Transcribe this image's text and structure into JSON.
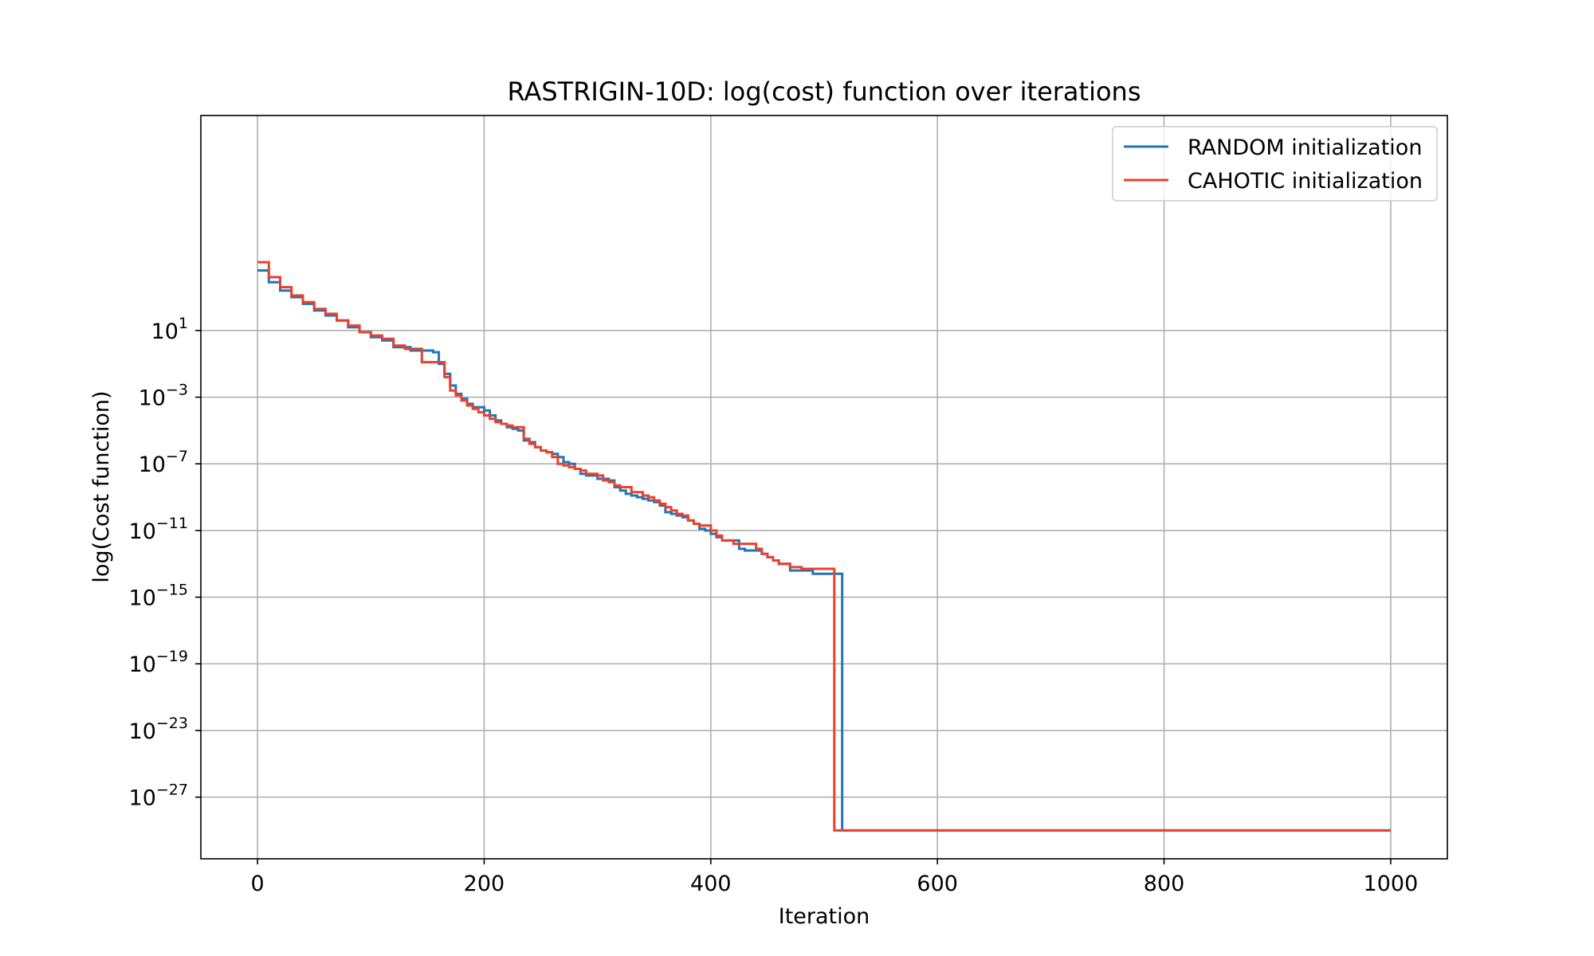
{
  "chart_data": {
    "type": "line",
    "title": "RASTRIGIN-10D: log(cost) function over iterations",
    "xlabel": "Iteration",
    "ylabel": "log(Cost function)",
    "y_scale": "log",
    "xlim": [
      -50,
      1050
    ],
    "ylim_exponent": [
      -30.7,
      13.9
    ],
    "x_ticks": [
      0,
      200,
      400,
      600,
      800,
      1000
    ],
    "y_ticks": [
      {
        "base": "10",
        "exp": "1",
        "value": 1
      },
      {
        "base": "10",
        "exp": "−3",
        "value": -3
      },
      {
        "base": "10",
        "exp": "−7",
        "value": -7
      },
      {
        "base": "10",
        "exp": "−11",
        "value": -11
      },
      {
        "base": "10",
        "exp": "−15",
        "value": -15
      },
      {
        "base": "10",
        "exp": "−19",
        "value": -19
      },
      {
        "base": "10",
        "exp": "−23",
        "value": -23
      },
      {
        "base": "10",
        "exp": "−27",
        "value": -27
      }
    ],
    "grid": true,
    "legend_position": "top-right",
    "value_note": "y values given as log10(cost)",
    "series": [
      {
        "name": "RANDOM initialization",
        "color": "#1f77b4",
        "x": [
          0,
          10,
          20,
          30,
          40,
          50,
          60,
          70,
          80,
          90,
          100,
          110,
          120,
          135,
          155,
          160,
          165,
          170,
          175,
          180,
          185,
          190,
          200,
          205,
          210,
          215,
          220,
          225,
          230,
          235,
          240,
          245,
          250,
          255,
          260,
          265,
          270,
          275,
          280,
          285,
          290,
          300,
          310,
          315,
          320,
          325,
          330,
          335,
          340,
          345,
          350,
          355,
          360,
          365,
          370,
          375,
          380,
          385,
          390,
          395,
          400,
          405,
          410,
          420,
          425,
          430,
          440,
          445,
          450,
          455,
          460,
          470,
          480,
          490,
          500,
          510,
          515,
          516,
          1000
        ],
        "y": [
          4.6,
          3.9,
          3.4,
          3.0,
          2.6,
          2.2,
          1.9,
          1.6,
          1.2,
          0.9,
          0.6,
          0.4,
          0.0,
          -0.2,
          -0.3,
          -1.0,
          -1.6,
          -2.3,
          -2.8,
          -3.1,
          -3.4,
          -3.6,
          -3.8,
          -4.1,
          -4.4,
          -4.6,
          -4.8,
          -4.9,
          -5.0,
          -5.6,
          -5.7,
          -6.0,
          -6.2,
          -6.3,
          -6.4,
          -6.6,
          -6.9,
          -7.0,
          -7.3,
          -7.6,
          -7.7,
          -7.9,
          -8.0,
          -8.4,
          -8.6,
          -8.8,
          -8.9,
          -9.0,
          -9.1,
          -9.2,
          -9.3,
          -9.5,
          -9.9,
          -10.0,
          -10.1,
          -10.2,
          -10.4,
          -10.6,
          -10.9,
          -11.0,
          -11.2,
          -11.4,
          -11.6,
          -11.6,
          -12.1,
          -12.2,
          -12.2,
          -12.4,
          -12.6,
          -12.8,
          -13.0,
          -13.4,
          -13.4,
          -13.6,
          -13.6,
          -13.6,
          -13.6,
          -29.0,
          -29.0
        ]
      },
      {
        "name": "CAHOTIC initialization",
        "color": "#e8412f",
        "x": [
          0,
          10,
          20,
          30,
          40,
          50,
          60,
          70,
          80,
          90,
          100,
          110,
          120,
          130,
          145,
          165,
          170,
          175,
          180,
          185,
          190,
          195,
          200,
          205,
          210,
          215,
          220,
          225,
          235,
          240,
          245,
          250,
          255,
          260,
          265,
          270,
          275,
          280,
          285,
          290,
          300,
          305,
          310,
          315,
          320,
          330,
          340,
          345,
          350,
          355,
          360,
          365,
          370,
          375,
          380,
          385,
          390,
          400,
          405,
          410,
          420,
          430,
          440,
          445,
          450,
          455,
          460,
          470,
          480,
          490,
          500,
          508,
          509,
          1000
        ],
        "y": [
          5.1,
          4.2,
          3.6,
          3.1,
          2.7,
          2.3,
          2.0,
          1.6,
          1.3,
          0.9,
          0.7,
          0.5,
          0.1,
          -0.1,
          -0.9,
          -1.8,
          -2.6,
          -2.9,
          -3.2,
          -3.5,
          -3.7,
          -3.9,
          -4.1,
          -4.3,
          -4.5,
          -4.6,
          -4.7,
          -4.8,
          -5.5,
          -5.8,
          -6.0,
          -6.2,
          -6.3,
          -6.6,
          -7.0,
          -7.1,
          -7.2,
          -7.3,
          -7.4,
          -7.6,
          -7.7,
          -8.0,
          -8.1,
          -8.3,
          -8.4,
          -8.7,
          -8.9,
          -9.0,
          -9.2,
          -9.4,
          -9.6,
          -9.8,
          -10.0,
          -10.1,
          -10.4,
          -10.6,
          -10.7,
          -11.0,
          -11.3,
          -11.6,
          -11.8,
          -11.8,
          -12.1,
          -12.4,
          -12.6,
          -12.8,
          -13.0,
          -13.2,
          -13.3,
          -13.3,
          -13.3,
          -13.3,
          -29.0,
          -29.0
        ]
      }
    ]
  }
}
